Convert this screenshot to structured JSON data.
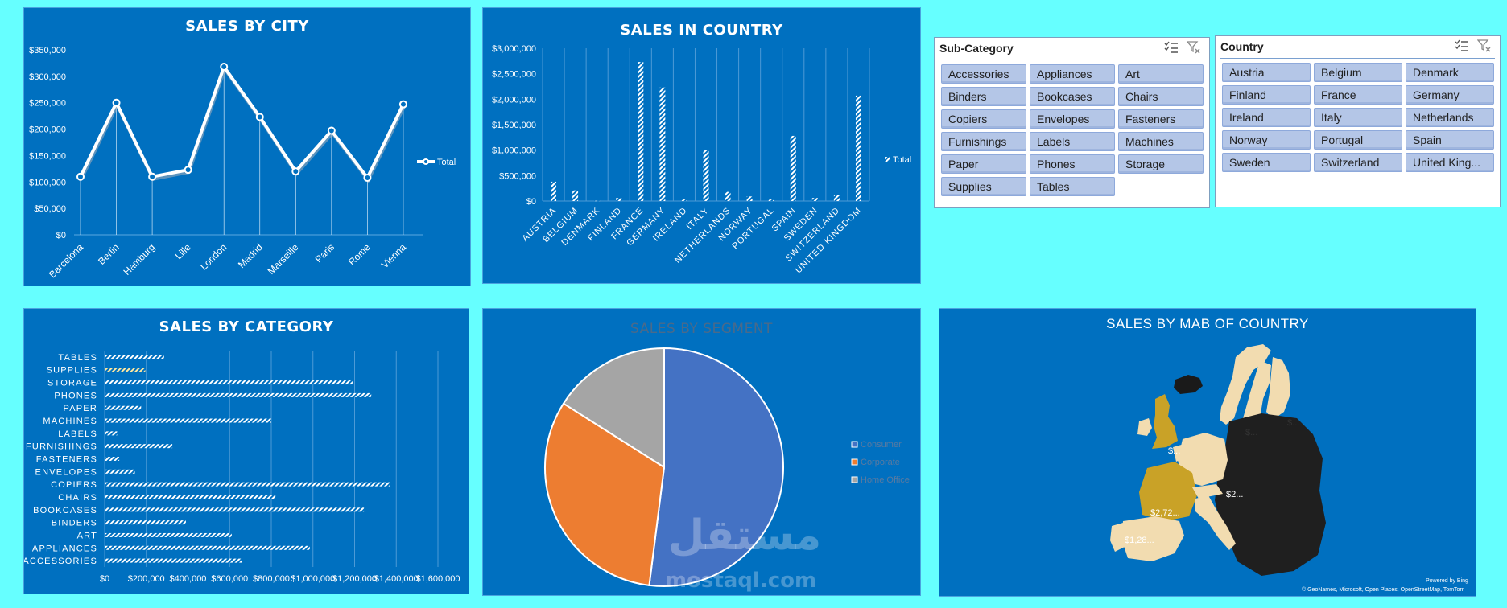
{
  "colors": {
    "background": "#66ffff",
    "panel": "#0070c0",
    "pie_consumer": "#4472c4",
    "pie_corporate": "#ed7d31",
    "pie_home_office": "#a5a5a5"
  },
  "sales_by_city": {
    "title": "SALES BY CITY",
    "legend": "Total",
    "chart_data": {
      "type": "line",
      "categories": [
        "Barcelona",
        "Berlin",
        "Hamburg",
        "Lille",
        "London",
        "Madrid",
        "Marseille",
        "Paris",
        "Rome",
        "Vienna"
      ],
      "series": [
        {
          "name": "Total",
          "values": [
            110000,
            250000,
            110000,
            123000,
            318000,
            223000,
            120000,
            197000,
            108000,
            247000
          ]
        }
      ],
      "y_ticks": [
        "$0",
        "$50,000",
        "$100,000",
        "$150,000",
        "$200,000",
        "$250,000",
        "$300,000",
        "$350,000"
      ],
      "ylim": [
        0,
        350000
      ],
      "legend_position": "right"
    }
  },
  "sales_in_country": {
    "title": "SALES IN COUNTRY",
    "legend": "Total",
    "chart_data": {
      "type": "bar",
      "categories": [
        "AUSTRIA",
        "BELGIUM",
        "DENMARK",
        "FINLAND",
        "FRANCE",
        "GERMANY",
        "IRELAND",
        "ITALY",
        "NETHERLANDS",
        "NORWAY",
        "PORTUGAL",
        "SPAIN",
        "SWEDEN",
        "SWITZERLAND",
        "UNITED KINGDOM"
      ],
      "series": [
        {
          "name": "Total",
          "values": [
            380000,
            210000,
            5000,
            60000,
            2730000,
            2230000,
            30000,
            1000000,
            180000,
            90000,
            30000,
            1280000,
            60000,
            120000,
            2070000
          ]
        }
      ],
      "y_ticks": [
        "$0",
        "$500,000",
        "$1,000,000",
        "$1,500,000",
        "$2,000,000",
        "$2,500,000",
        "$3,000,000"
      ],
      "ylim": [
        0,
        3000000
      ],
      "legend_position": "right"
    }
  },
  "sales_by_category": {
    "title": "SALES BY CATEGORY",
    "chart_data": {
      "type": "bar",
      "orientation": "horizontal",
      "categories": [
        "TABLES",
        "SUPPLIES",
        "STORAGE",
        "PHONES",
        "PAPER",
        "MACHINES",
        "LABELS",
        "FURNISHINGS",
        "FASTENERS",
        "ENVELOPES",
        "COPIERS",
        "CHAIRS",
        "BOOKCASES",
        "BINDERS",
        "ART",
        "APPLIANCES",
        "ACCESSORIES"
      ],
      "values": [
        285000,
        195000,
        1190000,
        1280000,
        175000,
        800000,
        60000,
        325000,
        70000,
        145000,
        1370000,
        820000,
        1245000,
        390000,
        610000,
        985000,
        660000
      ],
      "x_ticks": [
        "$0",
        "$200,000",
        "$400,000",
        "$600,000",
        "$800,000",
        "$1,000,000",
        "$1,200,000",
        "$1,400,000",
        "$1,600,000"
      ],
      "xlim": [
        0,
        1600000
      ]
    }
  },
  "sales_by_segment": {
    "title": "SALES BY SEGMENT",
    "chart_data": {
      "type": "pie",
      "labels": [
        "Consumer",
        "Corporate",
        "Home Office"
      ],
      "values": [
        52,
        32,
        16
      ],
      "legend_position": "right"
    }
  },
  "sales_map": {
    "title": "SALES BY MAB OF COUNTRY",
    "labels": {
      "france": "$2,72...",
      "spain": "$1,28...",
      "germany": "$2...",
      "uk": "$...",
      "sweden": "$...",
      "norway": "$..."
    },
    "credit1": "Powered by Bing",
    "credit2": "© GeoNames, Microsoft, Open Places, OpenStreetMap, TomTom"
  },
  "subcategory_slicer": {
    "header": "Sub-Category",
    "items": [
      "Accessories",
      "Appliances",
      "Art",
      "Binders",
      "Bookcases",
      "Chairs",
      "Copiers",
      "Envelopes",
      "Fasteners",
      "Furnishings",
      "Labels",
      "Machines",
      "Paper",
      "Phones",
      "Storage",
      "Supplies",
      "Tables"
    ]
  },
  "country_slicer": {
    "header": "Country",
    "items": [
      "Austria",
      "Belgium",
      "Denmark",
      "Finland",
      "France",
      "Germany",
      "Ireland",
      "Italy",
      "Netherlands",
      "Norway",
      "Portugal",
      "Spain",
      "Sweden",
      "Switzerland",
      "United King..."
    ]
  },
  "watermark": {
    "arabic": "مستقل",
    "latin": "mostaql.com"
  }
}
